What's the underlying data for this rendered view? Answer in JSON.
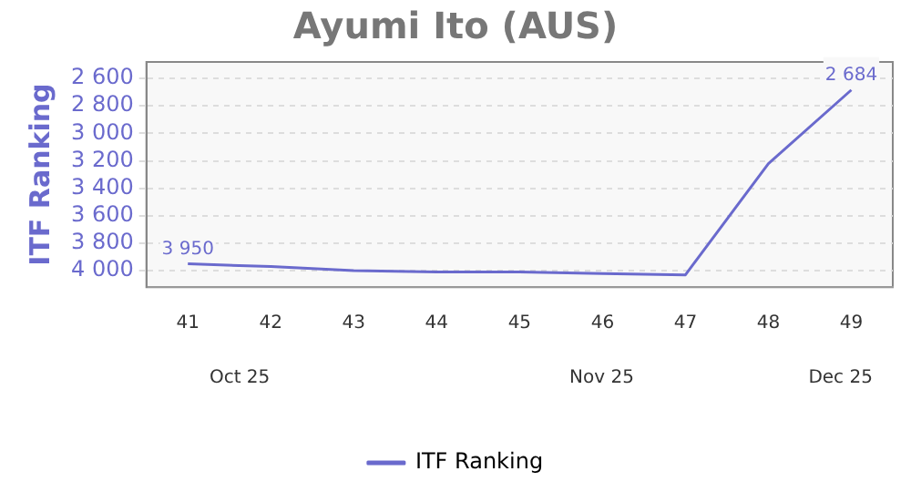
{
  "chart_data": {
    "type": "line",
    "title": "Ayumi Ito (AUS)",
    "ylabel": "ITF Ranking",
    "categories": [
      "41",
      "42",
      "43",
      "44",
      "45",
      "46",
      "47",
      "48",
      "49"
    ],
    "series": [
      {
        "name": "ITF Ranking",
        "color": "#6a6acd",
        "values": [
          3950,
          3970,
          4000,
          4010,
          4010,
          4020,
          4030,
          3220,
          2684
        ],
        "value_labels": [
          "3 950",
          null,
          null,
          null,
          null,
          null,
          null,
          null,
          "2 684"
        ]
      }
    ],
    "ylim": [
      4120,
      2480
    ],
    "yticks": [
      {
        "value": 2600,
        "label": "2 600"
      },
      {
        "value": 2800,
        "label": "2 800"
      },
      {
        "value": 3000,
        "label": "3 000"
      },
      {
        "value": 3200,
        "label": "3 200"
      },
      {
        "value": 3400,
        "label": "3 400"
      },
      {
        "value": 3600,
        "label": "3 600"
      },
      {
        "value": 3800,
        "label": "3 800"
      },
      {
        "value": 4000,
        "label": "4 000"
      }
    ],
    "annotations": [
      "Oct 25",
      "Nov 25",
      "Dec 25"
    ],
    "grid": "y",
    "legend": "bottom",
    "marker": "none",
    "line_style": "solid"
  }
}
